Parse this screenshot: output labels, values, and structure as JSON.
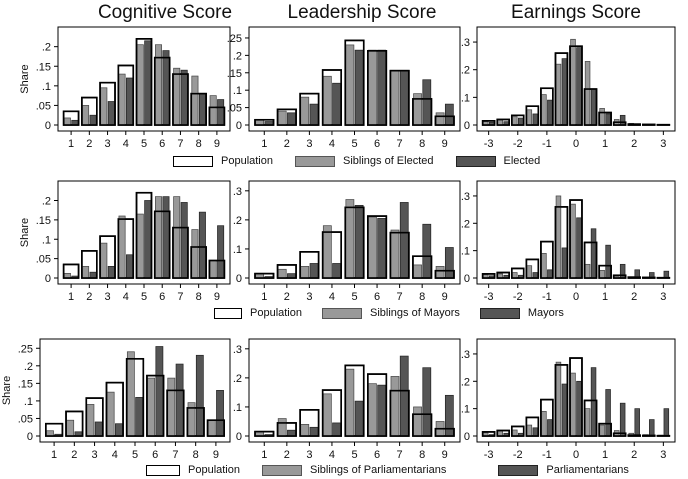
{
  "titles": {
    "cognitive": "Cognitive Score",
    "leadership": "Leadership Score",
    "earnings": "Earnings Score"
  },
  "legends": [
    {
      "population": "Population",
      "siblings": "Siblings of Elected",
      "elected": "Elected"
    },
    {
      "population": "Population",
      "siblings": "Siblings of Mayors",
      "elected": "Mayors"
    },
    {
      "population": "Population",
      "siblings": "Siblings of Parliamentarians",
      "elected": "Parliamentarians"
    }
  ],
  "colors": {
    "population_fill": "#ffffff",
    "siblings": "#999999",
    "elected": "#555555",
    "outline": "#000000"
  },
  "chart_data": [
    {
      "type": "bar",
      "row": 1,
      "column": "Cognitive Score",
      "ylabel": "Share",
      "ylim": [
        0,
        0.24
      ],
      "yticks": [
        0,
        0.05,
        0.1,
        0.15,
        0.2
      ],
      "ytick_labels": [
        "0",
        ".05",
        ".1",
        ".15",
        ".2"
      ],
      "categories": [
        "1",
        "2",
        "3",
        "4",
        "5",
        "6",
        "7",
        "8",
        "9"
      ],
      "series": [
        {
          "name": "Population",
          "values": [
            0.035,
            0.07,
            0.108,
            0.152,
            0.22,
            0.172,
            0.13,
            0.08,
            0.045
          ]
        },
        {
          "name": "Siblings of Elected",
          "values": [
            0.018,
            0.05,
            0.095,
            0.13,
            0.205,
            0.205,
            0.145,
            0.125,
            0.075
          ]
        },
        {
          "name": "Elected",
          "values": [
            0.012,
            0.025,
            0.06,
            0.12,
            0.215,
            0.19,
            0.14,
            0.08,
            0.065
          ]
        }
      ]
    },
    {
      "type": "bar",
      "row": 1,
      "column": "Leadership Score",
      "ylim": [
        0,
        0.27
      ],
      "yticks": [
        0,
        0.05,
        0.1,
        0.15,
        0.2,
        0.25
      ],
      "ytick_labels": [
        "0",
        ".05",
        ".1",
        ".15",
        ".2",
        ".25"
      ],
      "categories": [
        "1",
        "2",
        "3",
        "4",
        "5",
        "6",
        "7",
        "8",
        "9"
      ],
      "series": [
        {
          "name": "Population",
          "values": [
            0.015,
            0.045,
            0.09,
            0.158,
            0.243,
            0.213,
            0.156,
            0.075,
            0.025
          ]
        },
        {
          "name": "Siblings of Elected",
          "values": [
            0.015,
            0.04,
            0.08,
            0.14,
            0.23,
            0.215,
            0.155,
            0.09,
            0.035
          ]
        },
        {
          "name": "Elected",
          "values": [
            0.01,
            0.035,
            0.06,
            0.12,
            0.215,
            0.215,
            0.155,
            0.13,
            0.06
          ]
        }
      ]
    },
    {
      "type": "bar",
      "row": 1,
      "column": "Earnings Score",
      "ylim": [
        0,
        0.34
      ],
      "yticks": [
        0,
        0.1,
        0.2,
        0.3
      ],
      "ytick_labels": [
        "0",
        ".1",
        ".2",
        ".3"
      ],
      "xlim": [
        -3.4,
        3.4
      ],
      "x": [
        -3,
        -2.5,
        -2,
        -1.5,
        -1,
        -0.5,
        0,
        0.5,
        1,
        1.5,
        2,
        2.5,
        3
      ],
      "xtick_labels": [
        "-3",
        "-2",
        "-1",
        "0",
        "1",
        "2",
        "3"
      ],
      "series": [
        {
          "name": "Population",
          "values": [
            0.015,
            0.02,
            0.035,
            0.068,
            0.133,
            0.26,
            0.285,
            0.13,
            0.045,
            0.01,
            0.003,
            0.002,
            0.001
          ]
        },
        {
          "name": "Siblings of Elected",
          "values": [
            0.012,
            0.018,
            0.03,
            0.055,
            0.11,
            0.22,
            0.31,
            0.23,
            0.06,
            0.02,
            0.006,
            0.003,
            0.001
          ]
        },
        {
          "name": "Elected",
          "values": [
            0.01,
            0.012,
            0.025,
            0.04,
            0.09,
            0.24,
            0.28,
            0.13,
            0.04,
            0.035,
            0.004,
            0.002,
            0.001
          ]
        }
      ]
    },
    {
      "type": "bar",
      "row": 2,
      "column": "Cognitive Score",
      "ylabel": "Share",
      "ylim": [
        0,
        0.24
      ],
      "yticks": [
        0,
        0.05,
        0.1,
        0.15,
        0.2
      ],
      "ytick_labels": [
        "0",
        ".05",
        ".1",
        ".15",
        ".2"
      ],
      "categories": [
        "1",
        "2",
        "3",
        "4",
        "5",
        "6",
        "7",
        "8",
        "9"
      ],
      "series": [
        {
          "name": "Population",
          "values": [
            0.035,
            0.07,
            0.108,
            0.152,
            0.22,
            0.172,
            0.13,
            0.08,
            0.045
          ]
        },
        {
          "name": "Siblings of Mayors",
          "values": [
            0.012,
            0.03,
            0.09,
            0.16,
            0.165,
            0.21,
            0.21,
            0.125,
            0.045
          ]
        },
        {
          "name": "Mayors",
          "values": [
            0.005,
            0.015,
            0.03,
            0.06,
            0.2,
            0.21,
            0.195,
            0.17,
            0.135
          ]
        }
      ]
    },
    {
      "type": "bar",
      "row": 2,
      "column": "Leadership Score",
      "ylim": [
        0,
        0.32
      ],
      "yticks": [
        0,
        0.1,
        0.2,
        0.3
      ],
      "ytick_labels": [
        "0",
        ".1",
        ".2",
        ".3"
      ],
      "categories": [
        "1",
        "2",
        "3",
        "4",
        "5",
        "6",
        "7",
        "8",
        "9"
      ],
      "series": [
        {
          "name": "Population",
          "values": [
            0.015,
            0.045,
            0.09,
            0.158,
            0.243,
            0.213,
            0.156,
            0.075,
            0.025
          ]
        },
        {
          "name": "Siblings of Mayors",
          "values": [
            0.015,
            0.03,
            0.04,
            0.18,
            0.27,
            0.21,
            0.165,
            0.045,
            0.04
          ]
        },
        {
          "name": "Mayors",
          "values": [
            0.005,
            0.015,
            0.05,
            0.05,
            0.25,
            0.205,
            0.26,
            0.185,
            0.105
          ]
        }
      ]
    },
    {
      "type": "bar",
      "row": 2,
      "column": "Earnings Score",
      "ylim": [
        0,
        0.34
      ],
      "yticks": [
        0,
        0.1,
        0.2,
        0.3
      ],
      "ytick_labels": [
        "0",
        ".1",
        ".2",
        ".3"
      ],
      "xlim": [
        -3.4,
        3.4
      ],
      "x": [
        -3,
        -2.5,
        -2,
        -1.5,
        -1,
        -0.5,
        0,
        0.5,
        1,
        1.5,
        2,
        2.5,
        3
      ],
      "xtick_labels": [
        "-3",
        "-2",
        "-1",
        "0",
        "1",
        "2",
        "3"
      ],
      "series": [
        {
          "name": "Population",
          "values": [
            0.015,
            0.02,
            0.035,
            0.068,
            0.133,
            0.26,
            0.285,
            0.13,
            0.045,
            0.01,
            0.003,
            0.002,
            0.001
          ]
        },
        {
          "name": "Siblings of Mayors",
          "values": [
            0.012,
            0.015,
            0.02,
            0.045,
            0.09,
            0.3,
            0.27,
            0.05,
            0.028,
            0.005,
            0.002,
            0.001,
            0.001
          ]
        },
        {
          "name": "Mayors",
          "values": [
            0.008,
            0.01,
            0.01,
            0.02,
            0.03,
            0.11,
            0.22,
            0.18,
            0.12,
            0.05,
            0.03,
            0.02,
            0.025
          ]
        }
      ]
    },
    {
      "type": "bar",
      "row": 3,
      "column": "Cognitive Score",
      "ylabel": "Share",
      "ylim": [
        0,
        0.265
      ],
      "yticks": [
        0,
        0.05,
        0.1,
        0.15,
        0.2,
        0.25
      ],
      "ytick_labels": [
        "0",
        ".05",
        ".1",
        ".15",
        ".2",
        ".25"
      ],
      "categories": [
        "1",
        "2",
        "3",
        "4",
        "5",
        "6",
        "7",
        "8",
        "9"
      ],
      "series": [
        {
          "name": "Population",
          "values": [
            0.035,
            0.07,
            0.108,
            0.152,
            0.22,
            0.172,
            0.13,
            0.08,
            0.045
          ]
        },
        {
          "name": "Siblings of Parliamentarians",
          "values": [
            0.015,
            0.045,
            0.09,
            0.125,
            0.24,
            0.165,
            0.165,
            0.095,
            0.045
          ]
        },
        {
          "name": "Parliamentarians",
          "values": [
            0.005,
            0.012,
            0.04,
            0.035,
            0.11,
            0.255,
            0.205,
            0.23,
            0.13
          ]
        }
      ]
    },
    {
      "type": "bar",
      "row": 3,
      "column": "Leadership Score",
      "ylim": [
        0,
        0.32
      ],
      "yticks": [
        0,
        0.1,
        0.2,
        0.3
      ],
      "ytick_labels": [
        "0",
        ".1",
        ".2",
        ".3"
      ],
      "categories": [
        "1",
        "2",
        "3",
        "4",
        "5",
        "6",
        "7",
        "8",
        "9"
      ],
      "series": [
        {
          "name": "Population",
          "values": [
            0.015,
            0.045,
            0.09,
            0.158,
            0.243,
            0.213,
            0.156,
            0.075,
            0.025
          ]
        },
        {
          "name": "Siblings of Parliamentarians",
          "values": [
            0.015,
            0.06,
            0.04,
            0.145,
            0.23,
            0.18,
            0.205,
            0.1,
            0.05
          ]
        },
        {
          "name": "Parliamentarians",
          "values": [
            0.005,
            0.02,
            0.03,
            0.045,
            0.12,
            0.175,
            0.275,
            0.235,
            0.14
          ]
        }
      ]
    },
    {
      "type": "bar",
      "row": 3,
      "column": "Earnings Score",
      "ylim": [
        0,
        0.34
      ],
      "yticks": [
        0,
        0.1,
        0.2,
        0.3
      ],
      "ytick_labels": [
        "0",
        ".1",
        ".2",
        ".3"
      ],
      "xlim": [
        -3.4,
        3.4
      ],
      "x": [
        -3,
        -2.5,
        -2,
        -1.5,
        -1,
        -0.5,
        0,
        0.5,
        1,
        1.5,
        2,
        2.5,
        3
      ],
      "xtick_labels": [
        "-3",
        "-2",
        "-1",
        "0",
        "1",
        "2",
        "3"
      ],
      "series": [
        {
          "name": "Population",
          "values": [
            0.015,
            0.02,
            0.035,
            0.068,
            0.133,
            0.26,
            0.285,
            0.13,
            0.045,
            0.01,
            0.003,
            0.002,
            0.001
          ]
        },
        {
          "name": "Siblings of Parliamentarians",
          "values": [
            0.012,
            0.018,
            0.022,
            0.04,
            0.09,
            0.27,
            0.23,
            0.1,
            0.04,
            0.02,
            0.01,
            0.005,
            0.003
          ]
        },
        {
          "name": "Parliamentarians",
          "values": [
            0.005,
            0.01,
            0.01,
            0.03,
            0.06,
            0.19,
            0.2,
            0.25,
            0.17,
            0.12,
            0.1,
            0.06,
            0.1
          ]
        }
      ]
    }
  ]
}
